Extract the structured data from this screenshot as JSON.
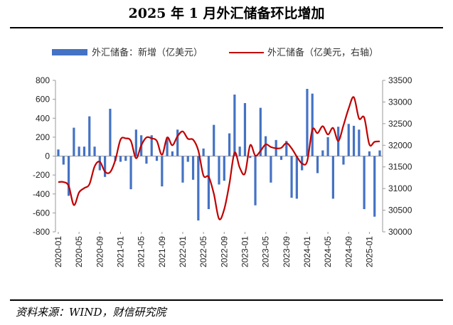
{
  "title": "2025 年 1 月外汇储备环比增加",
  "source": "资料来源：WIND，财信研究院",
  "chart_data": {
    "type": "bar+line",
    "title": "2025 年 1 月外汇储备环比增加",
    "legend": {
      "placement": "top"
    },
    "series": [
      {
        "name": "外汇储备：新增（亿美元）",
        "type": "bar",
        "axis": "left",
        "color": "#4472C4",
        "values": [
          70,
          -90,
          -420,
          300,
          100,
          100,
          420,
          100,
          -150,
          -220,
          500,
          -50,
          -60,
          -50,
          -350,
          280,
          220,
          -80,
          220,
          -50,
          -320,
          200,
          50,
          280,
          -280,
          -60,
          -250,
          -680,
          80,
          -560,
          330,
          -300,
          -260,
          240,
          650,
          100,
          560,
          -20,
          -520,
          510,
          210,
          -280,
          170,
          -40,
          160,
          -440,
          -450,
          -150,
          710,
          660,
          -180,
          60,
          200,
          -450,
          310,
          -90,
          340,
          320,
          280,
          -560,
          50,
          -640,
          60
        ]
      },
      {
        "name": "外汇储备（亿美元，右轴）",
        "type": "line",
        "axis": "right",
        "color": "#C00000",
        "values": [
          31150,
          31150,
          31060,
          30620,
          30910,
          31010,
          31100,
          31510,
          31620,
          31390,
          31380,
          31660,
          32130,
          32160,
          32100,
          31700,
          32000,
          32180,
          32160,
          32100,
          31780,
          32180,
          32000,
          32210,
          32320,
          32150,
          32130,
          31880,
          31300,
          31270,
          30880,
          30300,
          30520,
          31110,
          31830,
          31480,
          31350,
          32000,
          31760,
          31870,
          32020,
          31960,
          31930,
          31940,
          32050,
          31930,
          31740,
          31580,
          31630,
          32360,
          32280,
          32440,
          32250,
          32400,
          32100,
          32460,
          32850,
          33110,
          32620,
          32640,
          32020,
          32080,
          32090
        ]
      }
    ],
    "x_tick_labels": [
      "2020-01",
      "2020-05",
      "2020-09",
      "2021-01",
      "2021-05",
      "2021-09",
      "2022-01",
      "2022-05",
      "2022-09",
      "2023-01",
      "2023-05",
      "2023-09",
      "2024-01",
      "2024-05",
      "2024-09",
      "2025-01"
    ],
    "y_left": {
      "min": -800,
      "max": 800,
      "ticks": [
        -800,
        -600,
        -400,
        -200,
        0,
        200,
        400,
        600,
        800
      ]
    },
    "y_right": {
      "min": 30000,
      "max": 33500,
      "ticks": [
        30000,
        30500,
        31000,
        31500,
        32000,
        32500,
        33000,
        33500
      ]
    },
    "grid": false
  }
}
